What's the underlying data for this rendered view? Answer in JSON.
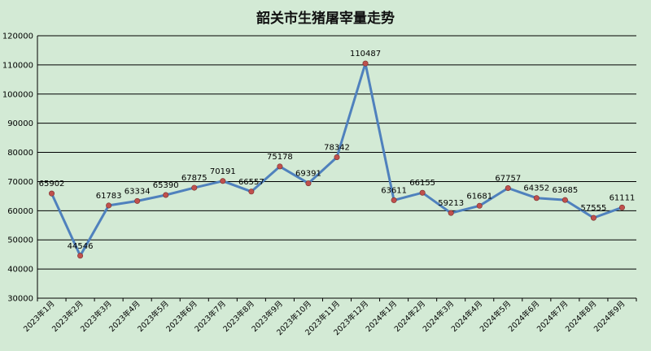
{
  "chart_data": {
    "type": "line",
    "title": "韶关市生猪屠宰量走势",
    "xlabel": "",
    "ylabel": "",
    "ylim": [
      30000,
      120000
    ],
    "y_ticks": [
      30000,
      40000,
      50000,
      60000,
      70000,
      80000,
      90000,
      100000,
      110000,
      120000
    ],
    "grid": true,
    "categories": [
      "2023年1月",
      "2023年2月",
      "2023年3月",
      "2023年4月",
      "2023年5月",
      "2023年6月",
      "2023年7月",
      "2023年8月",
      "2023年9月",
      "2023年10月",
      "2023年11月",
      "2023年12月",
      "2024年1月",
      "2024年2月",
      "2024年3月",
      "2024年4月",
      "2024年5月",
      "2024年6月",
      "2024年7月",
      "2024年8月",
      "2024年9月"
    ],
    "values": [
      65902,
      44546,
      61783,
      63334,
      65390,
      67875,
      70191,
      66557,
      75178,
      69391,
      78342,
      110487,
      63611,
      66155,
      59213,
      61681,
      67757,
      64352,
      63685,
      57555,
      61111
    ],
    "line_color": "#4f81bd",
    "marker_color": "#c0504d"
  }
}
